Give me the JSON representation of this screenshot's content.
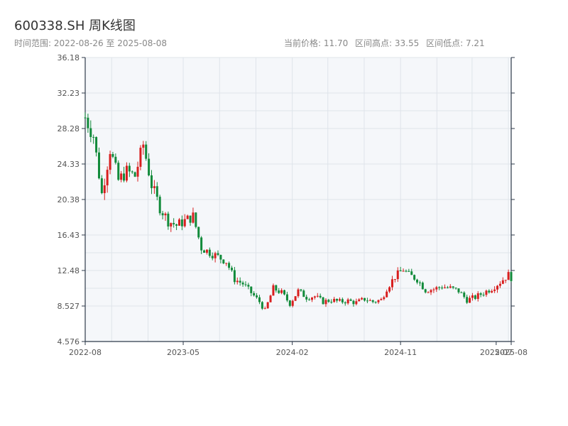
{
  "title": "600338.SH 周K线图",
  "subtitle": "时间范围: 2022-08-26 至 2025-08-08",
  "stats": {
    "current": "当前价格: 11.70",
    "high": "区间高点: 33.55",
    "low": "区间低点: 7.21"
  },
  "colors": {
    "up": "#d81e1e",
    "down": "#118a3a",
    "bg": "#f5f7fa",
    "axis": "#2e3a4a",
    "grid": "#dfe4ea"
  },
  "chart_data": {
    "type": "candlestick",
    "title": "600338.SH 周K线图",
    "ylim": [
      4.576,
      36.18
    ],
    "yticks": [
      "36.18",
      "32.23",
      "28.28",
      "24.33",
      "20.38",
      "16.43",
      "12.48",
      "8.527",
      "4.576"
    ],
    "ytick_values": [
      36.18,
      32.23,
      28.28,
      24.33,
      20.38,
      16.43,
      12.48,
      8.527,
      4.576
    ],
    "xticks": [
      "2022-08",
      "2023-05",
      "2024-02",
      "2024-11",
      "2025-07",
      "2025-08"
    ],
    "xtick_values": [
      "2022-08-26",
      "2023-05-01",
      "2024-02-01",
      "2024-11-01",
      "2025-07-01",
      "2025-08-08"
    ],
    "x_range": [
      "2022-08-26",
      "2025-08-08"
    ],
    "grid": true,
    "close_path": [
      [
        "2022-08-26",
        29.5
      ],
      [
        "2022-09-16",
        27.5
      ],
      [
        "2022-10-07",
        21.0
      ],
      [
        "2022-10-28",
        26.0
      ],
      [
        "2022-11-18",
        22.5
      ],
      [
        "2022-12-09",
        23.5
      ],
      [
        "2022-12-30",
        23.0
      ],
      [
        "2023-01-20",
        26.5
      ],
      [
        "2023-02-10",
        22.0
      ],
      [
        "2023-03-03",
        19.5
      ],
      [
        "2023-03-24",
        18.0
      ],
      [
        "2023-04-14",
        17.5
      ],
      [
        "2023-05-05",
        18.0
      ],
      [
        "2023-05-26",
        18.5
      ],
      [
        "2023-06-16",
        15.0
      ],
      [
        "2023-07-07",
        14.5
      ],
      [
        "2023-07-28",
        14.0
      ],
      [
        "2023-08-18",
        13.5
      ],
      [
        "2023-09-08",
        11.5
      ],
      [
        "2023-09-29",
        11.0
      ],
      [
        "2023-10-20",
        10.0
      ],
      [
        "2023-11-10",
        9.0
      ],
      [
        "2023-11-24",
        8.0
      ],
      [
        "2023-12-15",
        10.5
      ],
      [
        "2024-01-05",
        10.0
      ],
      [
        "2024-01-26",
        8.8
      ],
      [
        "2024-02-16",
        10.2
      ],
      [
        "2024-03-08",
        9.5
      ],
      [
        "2024-03-29",
        9.6
      ],
      [
        "2024-04-19",
        9.0
      ],
      [
        "2024-05-10",
        9.2
      ],
      [
        "2024-05-31",
        9.0
      ],
      [
        "2024-06-21",
        9.1
      ],
      [
        "2024-07-12",
        8.9
      ],
      [
        "2024-08-02",
        9.3
      ],
      [
        "2024-08-23",
        9.0
      ],
      [
        "2024-09-13",
        9.2
      ],
      [
        "2024-09-27",
        10.5
      ],
      [
        "2024-10-18",
        11.8
      ],
      [
        "2024-11-08",
        12.6
      ],
      [
        "2024-11-22",
        12.0
      ],
      [
        "2024-12-13",
        11.5
      ],
      [
        "2025-01-03",
        10.3
      ],
      [
        "2025-01-24",
        10.4
      ],
      [
        "2025-02-14",
        10.7
      ],
      [
        "2025-03-07",
        10.5
      ],
      [
        "2025-03-28",
        10.2
      ],
      [
        "2025-04-18",
        9.2
      ],
      [
        "2025-05-09",
        9.5
      ],
      [
        "2025-05-30",
        10.0
      ],
      [
        "2025-06-20",
        10.5
      ],
      [
        "2025-07-11",
        11.2
      ],
      [
        "2025-08-01",
        12.0
      ],
      [
        "2025-08-08",
        11.7
      ]
    ],
    "noise_seed": 7
  }
}
